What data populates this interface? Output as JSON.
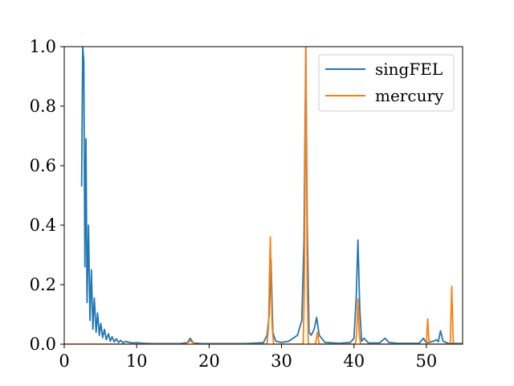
{
  "chart_data": {
    "type": "line",
    "title": "",
    "xlabel": "",
    "ylabel": "",
    "xlim": [
      0,
      55
    ],
    "ylim": [
      0,
      1.0
    ],
    "grid": false,
    "legend_position": "top-right",
    "x_ticks": [
      "0",
      "10",
      "20",
      "30",
      "40",
      "50"
    ],
    "y_ticks": [
      "0.0",
      "0.2",
      "0.4",
      "0.6",
      "0.8",
      "1.0"
    ],
    "series": [
      {
        "name": "singFEL",
        "color": "#1f77b4",
        "x": [
          2.4,
          2.55,
          2.7,
          2.85,
          3.0,
          3.15,
          3.35,
          3.55,
          3.75,
          3.95,
          4.15,
          4.4,
          4.6,
          4.85,
          5.05,
          5.3,
          5.55,
          5.8,
          6.1,
          6.35,
          6.6,
          6.9,
          7.2,
          7.5,
          7.8,
          8.1,
          8.5,
          9.0,
          9.5,
          10.0,
          11.0,
          12.0,
          14.0,
          16.0,
          17.0,
          17.4,
          17.8,
          19.0,
          25.0,
          27.5,
          28.0,
          28.3,
          28.55,
          28.8,
          29.2,
          30.0,
          31.0,
          31.6,
          32.2,
          32.8,
          33.1,
          33.35,
          33.55,
          33.8,
          34.1,
          34.5,
          34.85,
          35.2,
          36.0,
          38.0,
          39.5,
          40.0,
          40.3,
          40.55,
          40.8,
          41.05,
          41.4,
          42.0,
          43.5,
          44.3,
          44.8,
          46.0,
          49.0,
          49.6,
          50.0,
          51.0,
          51.4,
          51.65,
          51.95,
          52.3,
          53.0,
          55.0
        ],
        "values": [
          0.53,
          1.0,
          0.95,
          0.26,
          0.69,
          0.14,
          0.4,
          0.08,
          0.25,
          0.05,
          0.155,
          0.04,
          0.105,
          0.03,
          0.07,
          0.022,
          0.05,
          0.015,
          0.035,
          0.01,
          0.025,
          0.008,
          0.018,
          0.006,
          0.013,
          0.005,
          0.009,
          0.006,
          0.004,
          0.005,
          0.003,
          0.002,
          0.002,
          0.002,
          0.005,
          0.02,
          0.004,
          0.002,
          0.002,
          0.005,
          0.03,
          0.1,
          0.285,
          0.04,
          0.01,
          0.006,
          0.01,
          0.02,
          0.03,
          0.08,
          0.35,
          1.0,
          0.4,
          0.04,
          0.03,
          0.05,
          0.09,
          0.03,
          0.006,
          0.003,
          0.006,
          0.02,
          0.15,
          0.35,
          0.12,
          0.01,
          0.02,
          0.004,
          0.004,
          0.02,
          0.006,
          0.003,
          0.003,
          0.02,
          0.004,
          0.01,
          0.015,
          0.008,
          0.045,
          0.01,
          0.003,
          0.002
        ]
      },
      {
        "name": "mercury",
        "color": "#ff7f0e",
        "x": [
          0.0,
          16.8,
          17.4,
          18.0,
          28.0,
          28.2,
          28.45,
          28.7,
          28.9,
          33.0,
          33.15,
          33.35,
          33.55,
          33.7,
          34.7,
          34.95,
          35.2,
          40.2,
          40.38,
          40.55,
          40.72,
          40.9,
          50.0,
          50.18,
          50.35,
          50.5,
          53.3,
          53.5,
          53.7,
          53.9,
          55.0
        ],
        "values": [
          0.0,
          0.0,
          0.012,
          0.0,
          0.0,
          0.06,
          0.36,
          0.06,
          0.0,
          0.0,
          0.2,
          1.0,
          0.2,
          0.0,
          0.0,
          0.04,
          0.0,
          0.0,
          0.04,
          0.152,
          0.04,
          0.0,
          0.0,
          0.085,
          0.01,
          0.0,
          0.0,
          0.195,
          0.01,
          0.0,
          0.0
        ]
      }
    ]
  }
}
